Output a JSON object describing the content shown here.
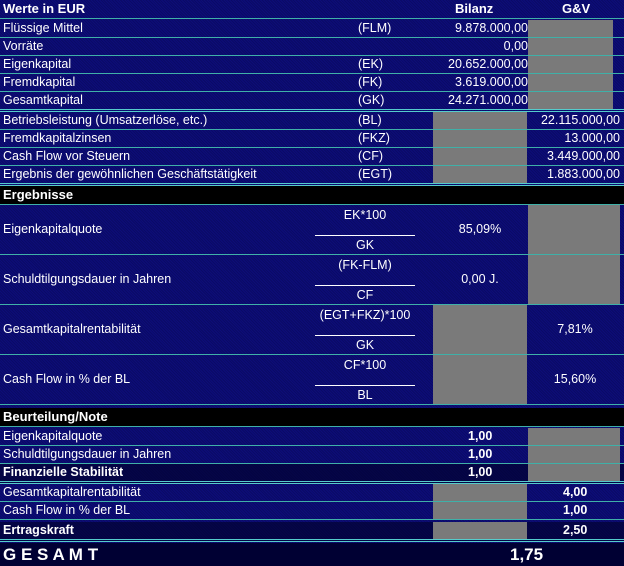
{
  "header": {
    "title": "Werte in EUR",
    "col_bilanz": "Bilanz",
    "col_guv": "G&V"
  },
  "inputs": [
    {
      "label": "Flüssige Mittel",
      "abbr": "(FLM)",
      "bilanz": "9.878.000,00",
      "guv": null
    },
    {
      "label": "Vorräte",
      "abbr": "",
      "bilanz": "0,00",
      "guv": null
    },
    {
      "label": "Eigenkapital",
      "abbr": "(EK)",
      "bilanz": "20.652.000,00",
      "guv": null
    },
    {
      "label": "Fremdkapital",
      "abbr": "(FK)",
      "bilanz": "3.619.000,00",
      "guv": null
    },
    {
      "label": "Gesamtkapital",
      "abbr": "(GK)",
      "bilanz": "24.271.000,00",
      "guv": null
    },
    {
      "label": "Betriebsleistung (Umsatzerlöse, etc.)",
      "abbr": "(BL)",
      "bilanz": null,
      "guv": "22.115.000,00"
    },
    {
      "label": "Fremdkapitalzinsen",
      "abbr": "(FKZ)",
      "bilanz": null,
      "guv": "13.000,00"
    },
    {
      "label": "Cash Flow vor Steuern",
      "abbr": "(CF)",
      "bilanz": null,
      "guv": "3.449.000,00"
    },
    {
      "label": "Ergebnis der gewöhnlichen Geschäftstätigkeit",
      "abbr": "(EGT)",
      "bilanz": null,
      "guv": "1.883.000,00"
    }
  ],
  "results_title": "Ergebnisse",
  "results": [
    {
      "label": "Eigenkapitalquote",
      "num": "EK*100",
      "den": "GK",
      "bilanz": "85,09%",
      "guv": null
    },
    {
      "label": "Schuldtilgungsdauer in Jahren",
      "num": "(FK-FLM)",
      "den": "CF",
      "bilanz": "0,00 J.",
      "guv": null
    },
    {
      "label": "Gesamtkapitalrentabilität",
      "num": "(EGT+FKZ)*100",
      "den": "GK",
      "bilanz": null,
      "guv": "7,81%"
    },
    {
      "label": "Cash Flow in % der BL",
      "num": "CF*100",
      "den": "BL",
      "bilanz": null,
      "guv": "15,60%"
    }
  ],
  "grades_title": "Beurteilung/Note",
  "grades": [
    {
      "label": "Eigenkapitalquote",
      "bilanz": "1,00",
      "guv": null,
      "bold": false
    },
    {
      "label": "Schuldtilgungsdauer in Jahren",
      "bilanz": "1,00",
      "guv": null,
      "bold": false
    },
    {
      "label": "Finanzielle Stabilität",
      "bilanz": "1,00",
      "guv": null,
      "bold": true
    },
    {
      "label": "Gesamtkapitalrentabilität",
      "bilanz": null,
      "guv": "4,00",
      "bold": false
    },
    {
      "label": "Cash Flow in % der BL",
      "bilanz": null,
      "guv": "1,00",
      "bold": false
    },
    {
      "label": "Ertragskraft",
      "bilanz": null,
      "guv": "2,50",
      "bold": true
    }
  ],
  "total": {
    "label": "G E S A M T",
    "value": "1,75"
  }
}
